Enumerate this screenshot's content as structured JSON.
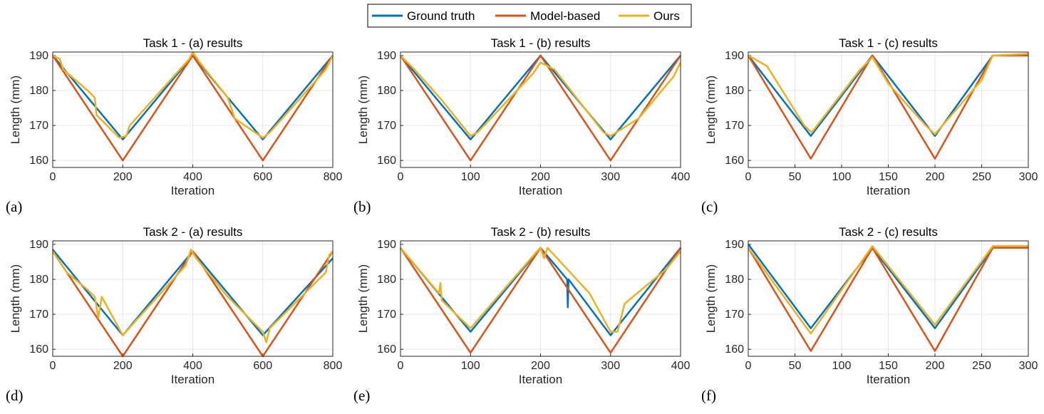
{
  "legend": [
    {
      "name": "Ground truth",
      "color": "#0072BD"
    },
    {
      "name": "Model-based",
      "color": "#D95319"
    },
    {
      "name": "Ours",
      "color": "#EDB120"
    }
  ],
  "chart_data": [
    {
      "type": "line",
      "panel": "(a)",
      "title": "Task 1 - (a) results",
      "xlabel": "Iteration",
      "ylabel": "Length (mm)",
      "xlim": [
        0,
        800
      ],
      "ylim": [
        158,
        191
      ],
      "xticks": [
        0,
        200,
        400,
        600,
        800
      ],
      "yticks": [
        160,
        170,
        180,
        190
      ],
      "series": [
        {
          "name": "Ground truth",
          "points": [
            [
              0,
              190
            ],
            [
              200,
              166
            ],
            [
              400,
              190
            ],
            [
              600,
              166
            ],
            [
              800,
              190
            ]
          ]
        },
        {
          "name": "Model-based",
          "points": [
            [
              0,
              190
            ],
            [
              200,
              160
            ],
            [
              400,
              190
            ],
            [
              600,
              160
            ],
            [
              800,
              190
            ]
          ]
        },
        {
          "name": "Ours",
          "points": [
            [
              0,
              190
            ],
            [
              20,
              189
            ],
            [
              30,
              186
            ],
            [
              100,
              180
            ],
            [
              120,
              178
            ],
            [
              125,
              173
            ],
            [
              190,
              166.5
            ],
            [
              210,
              167
            ],
            [
              220,
              170
            ],
            [
              390,
              189
            ],
            [
              400,
              191
            ],
            [
              420,
              188
            ],
            [
              500,
              178
            ],
            [
              520,
              172
            ],
            [
              600,
              166.5
            ],
            [
              620,
              168
            ],
            [
              780,
              186
            ],
            [
              800,
              190
            ]
          ]
        }
      ]
    },
    {
      "type": "line",
      "panel": "(b)",
      "title": "Task 1 - (b) results",
      "xlabel": "Iteration",
      "ylabel": "Length (mm)",
      "xlim": [
        0,
        400
      ],
      "ylim": [
        158,
        191
      ],
      "xticks": [
        0,
        100,
        200,
        300,
        400
      ],
      "yticks": [
        160,
        170,
        180,
        190
      ],
      "series": [
        {
          "name": "Ground truth",
          "points": [
            [
              0,
              190
            ],
            [
              100,
              166
            ],
            [
              200,
              190
            ],
            [
              300,
              166
            ],
            [
              400,
              190
            ]
          ]
        },
        {
          "name": "Model-based",
          "points": [
            [
              0,
              190
            ],
            [
              100,
              160
            ],
            [
              200,
              190
            ],
            [
              300,
              160
            ],
            [
              400,
              190
            ]
          ]
        },
        {
          "name": "Ours",
          "points": [
            [
              0,
              190
            ],
            [
              20,
              186
            ],
            [
              60,
              177
            ],
            [
              100,
              167
            ],
            [
              110,
              168
            ],
            [
              190,
              185
            ],
            [
              200,
              188
            ],
            [
              220,
              186
            ],
            [
              290,
              168
            ],
            [
              300,
              167
            ],
            [
              340,
              172
            ],
            [
              390,
              184
            ],
            [
              400,
              188
            ]
          ]
        }
      ]
    },
    {
      "type": "line",
      "panel": "(c)",
      "title": "Task 1 - (c) results",
      "xlabel": "Iteration",
      "ylabel": "Length (mm)",
      "xlim": [
        0,
        300
      ],
      "ylim": [
        158,
        191
      ],
      "xticks": [
        0,
        50,
        100,
        150,
        200,
        250,
        300
      ],
      "yticks": [
        160,
        170,
        180,
        190
      ],
      "series": [
        {
          "name": "Ground truth",
          "points": [
            [
              0,
              190
            ],
            [
              67,
              167
            ],
            [
              133,
              190
            ],
            [
              200,
              167
            ],
            [
              262,
              190
            ],
            [
              300,
              190
            ]
          ]
        },
        {
          "name": "Model-based",
          "points": [
            [
              0,
              190
            ],
            [
              67,
              160.5
            ],
            [
              133,
              190
            ],
            [
              200,
              160.5
            ],
            [
              262,
              190
            ],
            [
              300,
              190
            ]
          ]
        },
        {
          "name": "Ours",
          "points": [
            [
              0,
              190
            ],
            [
              20,
              187
            ],
            [
              60,
              170
            ],
            [
              68,
              168
            ],
            [
              120,
              186
            ],
            [
              133,
              189.5
            ],
            [
              150,
              182
            ],
            [
              190,
              170
            ],
            [
              200,
              167.5
            ],
            [
              250,
              183
            ],
            [
              262,
              190
            ],
            [
              300,
              190.5
            ]
          ]
        }
      ]
    },
    {
      "type": "line",
      "panel": "(d)",
      "title": "Task 2 - (a) results",
      "xlabel": "Iteration",
      "ylabel": "Length (mm)",
      "xlim": [
        0,
        800
      ],
      "ylim": [
        158,
        191
      ],
      "xticks": [
        0,
        200,
        400,
        600,
        800
      ],
      "yticks": [
        160,
        170,
        180,
        190
      ],
      "series": [
        {
          "name": "Ground truth",
          "points": [
            [
              0,
              188.5
            ],
            [
              200,
              164
            ],
            [
              400,
              188
            ],
            [
              600,
              164
            ],
            [
              800,
              186
            ]
          ]
        },
        {
          "name": "Model-based",
          "points": [
            [
              0,
              188
            ],
            [
              200,
              158
            ],
            [
              400,
              188
            ],
            [
              600,
              158
            ],
            [
              800,
              188
            ]
          ]
        },
        {
          "name": "Ours",
          "points": [
            [
              0,
              188
            ],
            [
              40,
              182
            ],
            [
              100,
              177
            ],
            [
              120,
              175
            ],
            [
              130,
              169
            ],
            [
              140,
              175
            ],
            [
              200,
              164
            ],
            [
              380,
              184
            ],
            [
              395,
              188.5
            ],
            [
              410,
              186
            ],
            [
              500,
              175
            ],
            [
              600,
              165
            ],
            [
              610,
              162
            ],
            [
              620,
              166
            ],
            [
              780,
              182
            ],
            [
              790,
              187
            ],
            [
              800,
              188
            ]
          ]
        }
      ]
    },
    {
      "type": "line",
      "panel": "(e)",
      "title": "Task 2 - (b) results",
      "xlabel": "Iteration",
      "ylabel": "Length (mm)",
      "xlim": [
        0,
        400
      ],
      "ylim": [
        158,
        191
      ],
      "xticks": [
        0,
        100,
        200,
        300,
        400
      ],
      "yticks": [
        160,
        170,
        180,
        190
      ],
      "series": [
        {
          "name": "Ground truth",
          "points": [
            [
              0,
              189
            ],
            [
              100,
              165
            ],
            [
              200,
              189
            ],
            [
              238,
              180
            ],
            [
              239,
              172
            ],
            [
              240,
              180
            ],
            [
              300,
              164
            ],
            [
              400,
              189
            ]
          ]
        },
        {
          "name": "Model-based",
          "points": [
            [
              0,
              189
            ],
            [
              100,
              159
            ],
            [
              200,
              189
            ],
            [
              300,
              159
            ],
            [
              400,
              189
            ]
          ]
        },
        {
          "name": "Ours",
          "points": [
            [
              0,
              189
            ],
            [
              55,
              176
            ],
            [
              57,
              179
            ],
            [
              59,
              174
            ],
            [
              100,
              166
            ],
            [
              195,
              188
            ],
            [
              200,
              189
            ],
            [
              205,
              186
            ],
            [
              210,
              189
            ],
            [
              270,
              176
            ],
            [
              300,
              165
            ],
            [
              310,
              165
            ],
            [
              320,
              173
            ],
            [
              380,
              183
            ],
            [
              400,
              188
            ]
          ]
        }
      ]
    },
    {
      "type": "line",
      "panel": "(f)",
      "title": "Task 2 - (c) results",
      "xlabel": "Iteration",
      "ylabel": "Length (mm)",
      "xlim": [
        0,
        300
      ],
      "ylim": [
        158,
        191
      ],
      "xticks": [
        0,
        50,
        100,
        150,
        200,
        250,
        300
      ],
      "yticks": [
        160,
        170,
        180,
        190
      ],
      "series": [
        {
          "name": "Ground truth",
          "points": [
            [
              0,
              190
            ],
            [
              67,
              166
            ],
            [
              133,
              189
            ],
            [
              200,
              166
            ],
            [
              262,
              189
            ],
            [
              300,
              189
            ]
          ]
        },
        {
          "name": "Model-based",
          "points": [
            [
              0,
              189
            ],
            [
              67,
              159.5
            ],
            [
              133,
              189
            ],
            [
              200,
              159.5
            ],
            [
              262,
              189
            ],
            [
              300,
              189
            ]
          ]
        },
        {
          "name": "Ours",
          "points": [
            [
              0,
              189
            ],
            [
              67,
              164.5
            ],
            [
              133,
              189.5
            ],
            [
              200,
              167
            ],
            [
              262,
              189.5
            ],
            [
              300,
              189.5
            ]
          ]
        }
      ]
    }
  ]
}
